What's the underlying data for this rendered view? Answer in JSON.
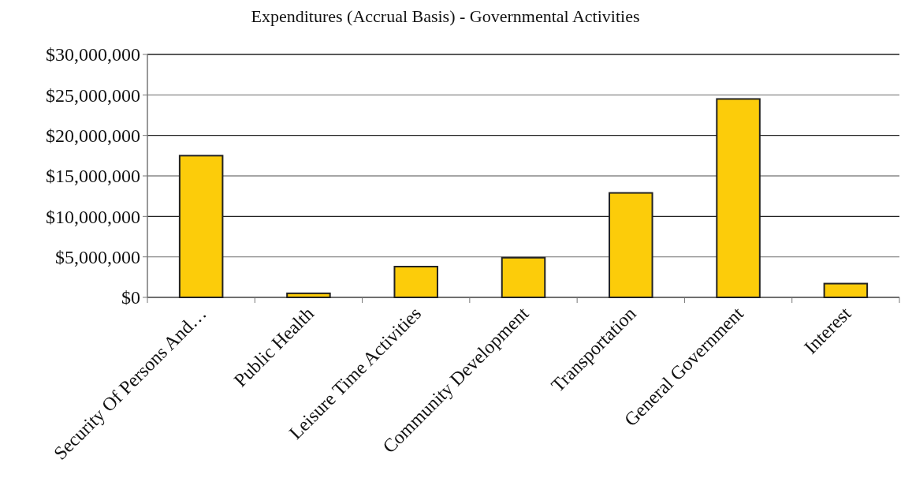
{
  "chart_data": {
    "type": "bar",
    "title": "Expenditures (Accrual Basis) - Governmental Activities",
    "categories": [
      "Security Of Persons And…",
      "Public Health",
      "Leisure Time Activities",
      "Community Development",
      "Transportation",
      "General Government",
      "Interest"
    ],
    "values": [
      17500000,
      500000,
      3800000,
      4900000,
      12900000,
      24500000,
      1700000
    ],
    "color": "#fccc0a",
    "ylim": [
      0,
      30000000
    ],
    "yticks": [
      {
        "value": 0,
        "label": "$0"
      },
      {
        "value": 5000000,
        "label": "$5,000,000"
      },
      {
        "value": 10000000,
        "label": "$10,000,000"
      },
      {
        "value": 15000000,
        "label": "$15,000,000"
      },
      {
        "value": 20000000,
        "label": "$20,000,000"
      },
      {
        "value": 25000000,
        "label": "$25,000,000"
      },
      {
        "value": 30000000,
        "label": "$30,000,000"
      }
    ],
    "grid": "y"
  }
}
